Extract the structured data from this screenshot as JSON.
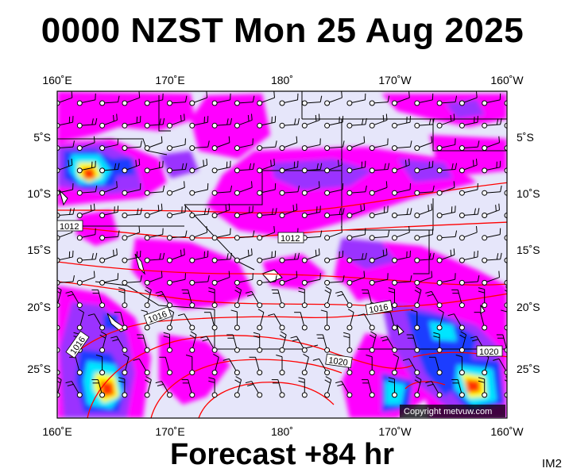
{
  "title": "0000 NZST Mon 25 Aug 2025",
  "footer": "Forecast +84 hr",
  "image_code": "IM2",
  "copyright": "Copyright metvuw.com",
  "lon_labels": [
    "160˚E",
    "170˚E",
    "180˚",
    "170˚W",
    "160˚W"
  ],
  "lat_labels": [
    "5˚S",
    "10˚S",
    "15˚S",
    "20˚S",
    "25˚S"
  ],
  "isobar_labels": [
    "1012",
    "1012",
    "1016",
    "1016",
    "1016",
    "1020",
    "1020"
  ],
  "colors": {
    "sea_background": "#e6e6fa",
    "rain_light": "#ff00ff",
    "rain_moderate": "#8a2be2",
    "rain_heavy": "#0000cd",
    "rain_very_heavy": "#00ffff",
    "rain_extreme": "#ffff00",
    "isobar": "#ff0000",
    "land_border": "#000000"
  },
  "icons": [
    "wind-barb-icon"
  ]
}
